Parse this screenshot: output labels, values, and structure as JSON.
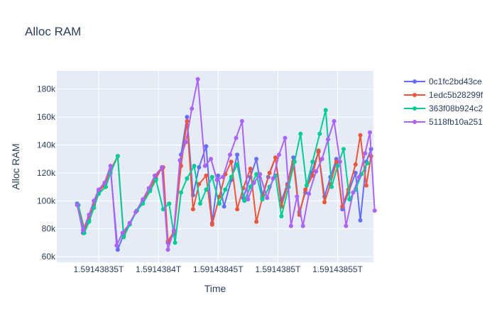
{
  "chart_data": {
    "type": "line",
    "title": "Alloc RAM",
    "xlabel": "Time",
    "ylabel": "Alloc RAM",
    "x_tick_labels": [
      "1.59143835T",
      "1.5914384T",
      "1.59143845T",
      "1.5914385T",
      "1.59143855T"
    ],
    "x_tick_values": [
      1591438350000,
      1591438400000,
      1591438450000,
      1591438500000,
      1591438550000
    ],
    "xlim": [
      1591438315000,
      1591438580000
    ],
    "y_tick_labels": [
      "60k",
      "80k",
      "100k",
      "120k",
      "140k",
      "160k",
      "180k"
    ],
    "y_tick_values": [
      60000,
      80000,
      100000,
      120000,
      140000,
      160000,
      180000
    ],
    "ylim": [
      56000,
      193000
    ],
    "grid": true,
    "legend_position": "top-right",
    "series": [
      {
        "name": "0c1fc2bd43ce",
        "color": "#636efa",
        "points": [
          [
            1591438332000,
            98000
          ],
          [
            1591438337000,
            77000
          ],
          [
            1591438342000,
            86000
          ],
          [
            1591438346000,
            95000
          ],
          [
            1591438350000,
            106000
          ],
          [
            1591438355000,
            112000
          ],
          [
            1591438360000,
            122000
          ],
          [
            1591438366000,
            65000
          ],
          [
            1591438371000,
            76000
          ],
          [
            1591438376000,
            84000
          ],
          [
            1591438382000,
            93000
          ],
          [
            1591438387000,
            100000
          ],
          [
            1591438393000,
            108000
          ],
          [
            1591438398000,
            116000
          ],
          [
            1591438403000,
            124000
          ],
          [
            1591438408000,
            70000
          ],
          [
            1591438413000,
            76000
          ],
          [
            1591438419000,
            133000
          ],
          [
            1591438424000,
            160000
          ],
          [
            1591438429000,
            104000
          ],
          [
            1591438434000,
            124000
          ],
          [
            1591438440000,
            139000
          ],
          [
            1591438445000,
            84000
          ],
          [
            1591438450000,
            118000
          ],
          [
            1591438455000,
            96000
          ],
          [
            1591438461000,
            115000
          ],
          [
            1591438466000,
            133000
          ],
          [
            1591438471000,
            102000
          ],
          [
            1591438477000,
            117000
          ],
          [
            1591438482000,
            130000
          ],
          [
            1591438487000,
            104000
          ],
          [
            1591438492000,
            117000
          ],
          [
            1591438498000,
            131000
          ],
          [
            1591438503000,
            100000
          ],
          [
            1591438508000,
            112000
          ],
          [
            1591438513000,
            131000
          ],
          [
            1591438518000,
            92000
          ],
          [
            1591438523000,
            106000
          ],
          [
            1591438528000,
            120000
          ],
          [
            1591438534000,
            135000
          ],
          [
            1591438539000,
            103000
          ],
          [
            1591438544000,
            117000
          ],
          [
            1591438549000,
            130000
          ],
          [
            1591438554000,
            94000
          ],
          [
            1591438559000,
            106000
          ],
          [
            1591438565000,
            120000
          ],
          [
            1591438569000,
            86000
          ],
          [
            1591438574000,
            128000
          ],
          [
            1591438578000,
            137000
          ]
        ]
      },
      {
        "name": "1edc5b28299f",
        "color": "#ef553b",
        "points": [
          [
            1591438333000,
            97000
          ],
          [
            1591438338000,
            80000
          ],
          [
            1591438342000,
            88000
          ],
          [
            1591438346000,
            97000
          ],
          [
            1591438350000,
            107000
          ],
          [
            1591438355000,
            111000
          ],
          [
            1591438360000,
            122000
          ],
          [
            1591438366000,
            132000
          ],
          [
            1591438371000,
            75000
          ],
          [
            1591438376000,
            84000
          ],
          [
            1591438382000,
            93000
          ],
          [
            1591438387000,
            100000
          ],
          [
            1591438393000,
            108000
          ],
          [
            1591438398000,
            118000
          ],
          [
            1591438404000,
            124000
          ],
          [
            1591438408000,
            71000
          ],
          [
            1591438413000,
            78000
          ],
          [
            1591438419000,
            125000
          ],
          [
            1591438424000,
            157000
          ],
          [
            1591438429000,
            94000
          ],
          [
            1591438434000,
            112000
          ],
          [
            1591438440000,
            118000
          ],
          [
            1591438445000,
            83000
          ],
          [
            1591438451000,
            103000
          ],
          [
            1591438456000,
            119000
          ],
          [
            1591438461000,
            128000
          ],
          [
            1591438466000,
            94000
          ],
          [
            1591438471000,
            109000
          ],
          [
            1591438477000,
            123000
          ],
          [
            1591438482000,
            85000
          ],
          [
            1591438487000,
            102000
          ],
          [
            1591438493000,
            120000
          ],
          [
            1591438498000,
            131000
          ],
          [
            1591438503000,
            96000
          ],
          [
            1591438508000,
            111000
          ],
          [
            1591438513000,
            128000
          ],
          [
            1591438518000,
            90000
          ],
          [
            1591438523000,
            108000
          ],
          [
            1591438529000,
            118000
          ],
          [
            1591438534000,
            136000
          ],
          [
            1591438539000,
            99000
          ],
          [
            1591438544000,
            112000
          ],
          [
            1591438549000,
            128000
          ],
          [
            1591438554000,
            96000
          ],
          [
            1591438559000,
            108000
          ],
          [
            1591438565000,
            126000
          ],
          [
            1591438569000,
            147000
          ],
          [
            1591438574000,
            111000
          ],
          [
            1591438578000,
            132000
          ]
        ]
      },
      {
        "name": "363f08b924c2",
        "color": "#00cc96",
        "points": [
          [
            1591438333000,
            97000
          ],
          [
            1591438338000,
            77000
          ],
          [
            1591438342000,
            85000
          ],
          [
            1591438346000,
            95000
          ],
          [
            1591438350000,
            105000
          ],
          [
            1591438356000,
            110000
          ],
          [
            1591438360000,
            120000
          ],
          [
            1591438366000,
            132000
          ],
          [
            1591438371000,
            74000
          ],
          [
            1591438376000,
            83000
          ],
          [
            1591438382000,
            93000
          ],
          [
            1591438387000,
            98000
          ],
          [
            1591438393000,
            107000
          ],
          [
            1591438398000,
            115000
          ],
          [
            1591438404000,
            94000
          ],
          [
            1591438409000,
            98000
          ],
          [
            1591438414000,
            70000
          ],
          [
            1591438419000,
            106000
          ],
          [
            1591438424000,
            116000
          ],
          [
            1591438430000,
            125000
          ],
          [
            1591438435000,
            98000
          ],
          [
            1591438440000,
            108000
          ],
          [
            1591438445000,
            117000
          ],
          [
            1591438451000,
            98000
          ],
          [
            1591438456000,
            108000
          ],
          [
            1591438461000,
            117000
          ],
          [
            1591438466000,
            126000
          ],
          [
            1591438472000,
            100000
          ],
          [
            1591438477000,
            110000
          ],
          [
            1591438482000,
            119000
          ],
          [
            1591438487000,
            101000
          ],
          [
            1591438493000,
            110000
          ],
          [
            1591438498000,
            118000
          ],
          [
            1591438503000,
            89000
          ],
          [
            1591438509000,
            110000
          ],
          [
            1591438514000,
            128000
          ],
          [
            1591438519000,
            148000
          ],
          [
            1591438524000,
            111000
          ],
          [
            1591438529000,
            128000
          ],
          [
            1591438535000,
            148000
          ],
          [
            1591438540000,
            165000
          ],
          [
            1591438545000,
            110000
          ],
          [
            1591438550000,
            125000
          ],
          [
            1591438555000,
            137000
          ],
          [
            1591438560000,
            101000
          ],
          [
            1591438565000,
            108000
          ],
          [
            1591438570000,
            119000
          ],
          [
            1591438575000,
            127000
          ]
        ]
      },
      {
        "name": "5118fb10a251",
        "color": "#ab63fa",
        "points": [
          [
            1591438332000,
            97000
          ],
          [
            1591438337000,
            79000
          ],
          [
            1591438342000,
            90000
          ],
          [
            1591438346000,
            100000
          ],
          [
            1591438350000,
            108000
          ],
          [
            1591438355000,
            113000
          ],
          [
            1591438360000,
            125000
          ],
          [
            1591438365000,
            68000
          ],
          [
            1591438370000,
            77000
          ],
          [
            1591438376000,
            84000
          ],
          [
            1591438381000,
            92000
          ],
          [
            1591438387000,
            101000
          ],
          [
            1591438392000,
            109000
          ],
          [
            1591438397000,
            118000
          ],
          [
            1591438403000,
            124000
          ],
          [
            1591438408000,
            65000
          ],
          [
            1591438413000,
            79000
          ],
          [
            1591438418000,
            129000
          ],
          [
            1591438423000,
            142000
          ],
          [
            1591438428000,
            166000
          ],
          [
            1591438433000,
            187000
          ],
          [
            1591438439000,
            125000
          ],
          [
            1591438444000,
            130000
          ],
          [
            1591438449000,
            115000
          ],
          [
            1591438454000,
            117000
          ],
          [
            1591438460000,
            133000
          ],
          [
            1591438465000,
            145000
          ],
          [
            1591438470000,
            157000
          ],
          [
            1591438475000,
            101000
          ],
          [
            1591438480000,
            113000
          ],
          [
            1591438485000,
            119000
          ],
          [
            1591438491000,
            102000
          ],
          [
            1591438496000,
            116000
          ],
          [
            1591438501000,
            133000
          ],
          [
            1591438506000,
            145000
          ],
          [
            1591438511000,
            82000
          ],
          [
            1591438516000,
            103000
          ],
          [
            1591438521000,
            82000
          ],
          [
            1591438526000,
            105000
          ],
          [
            1591438532000,
            121000
          ],
          [
            1591438537000,
            130000
          ],
          [
            1591438542000,
            144000
          ],
          [
            1591438547000,
            157000
          ],
          [
            1591438552000,
            128000
          ],
          [
            1591438557000,
            82000
          ],
          [
            1591438563000,
            106000
          ],
          [
            1591438568000,
            117000
          ],
          [
            1591438573000,
            134000
          ],
          [
            1591438577000,
            149000
          ],
          [
            1591438581000,
            93000
          ]
        ]
      }
    ]
  }
}
